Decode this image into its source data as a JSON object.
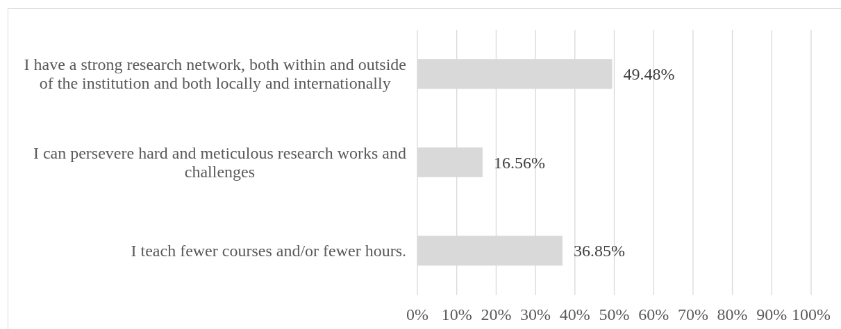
{
  "chart_data": {
    "type": "bar",
    "orientation": "horizontal",
    "categories": [
      "I have a strong research network, both within and outside of the institution and both locally and internationally",
      "I can persevere hard and meticulous research works and challenges",
      "I teach fewer courses and/or fewer hours."
    ],
    "values": [
      49.48,
      16.56,
      36.85
    ],
    "color": "#d9d9d9",
    "value_labels": [
      "49.48%",
      "16.56%",
      "36.85%"
    ],
    "xlim": [
      0,
      100
    ],
    "xticks": [
      {
        "value": 0,
        "label": "0%"
      },
      {
        "value": 10,
        "label": "10%"
      },
      {
        "value": 20,
        "label": "20%"
      },
      {
        "value": 30,
        "label": "30%"
      },
      {
        "value": 40,
        "label": "40%"
      },
      {
        "value": 50,
        "label": "50%"
      },
      {
        "value": 60,
        "label": "60%"
      },
      {
        "value": 70,
        "label": "70%"
      },
      {
        "value": 80,
        "label": "80%"
      },
      {
        "value": 90,
        "label": "90%"
      },
      {
        "value": 100,
        "label": "100%"
      }
    ],
    "grid": "x"
  }
}
